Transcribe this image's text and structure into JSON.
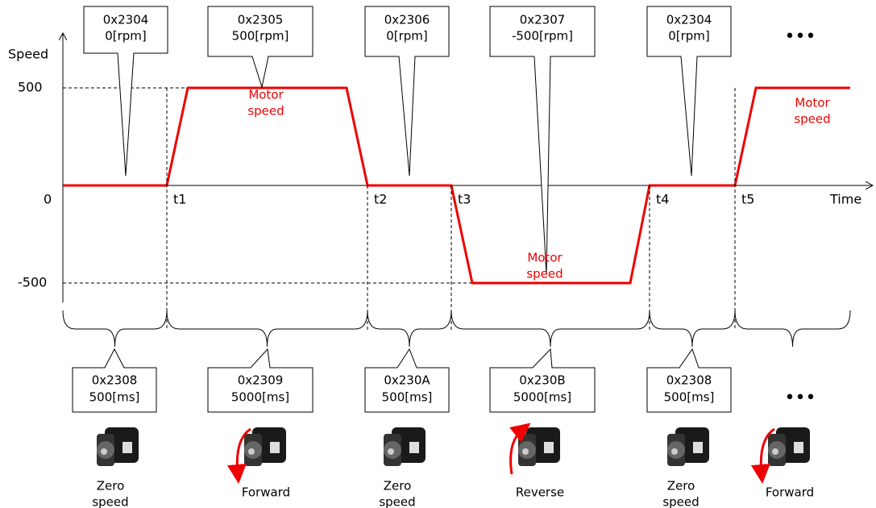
{
  "axis": {
    "y_label": "Speed",
    "x_label": "Time",
    "origin": "0",
    "tick_labels": [
      "500",
      "-500"
    ]
  },
  "time_marks": [
    "t1",
    "t2",
    "t3",
    "t4",
    "t5"
  ],
  "top_callouts": [
    [
      "0x2304",
      "0[rpm]"
    ],
    [
      "0x2305",
      "500[rpm]"
    ],
    [
      "0x2306",
      "0[rpm]"
    ],
    [
      "0x2307",
      "-500[rpm]"
    ],
    [
      "0x2304",
      "0[rpm]"
    ]
  ],
  "speed_labels": [
    [
      "Motor",
      "speed"
    ],
    [
      "Motor",
      "speed"
    ],
    [
      "Motor",
      "speed"
    ]
  ],
  "bottom_callouts": [
    [
      "0x2308",
      "500[ms]"
    ],
    [
      "0x2309",
      "5000[ms]"
    ],
    [
      "0x230A",
      "500[ms]"
    ],
    [
      "0x230B",
      "5000[ms]"
    ],
    [
      "0x2308",
      "500[ms]"
    ]
  ],
  "motor_captions": [
    [
      "Zero",
      "speed"
    ],
    [
      "Forward"
    ],
    [
      "Zero",
      "speed"
    ],
    [
      "Reverse"
    ],
    [
      "Zero",
      "speed"
    ],
    [
      "Forward"
    ]
  ],
  "continuation": [
    "•••",
    "•••"
  ]
}
